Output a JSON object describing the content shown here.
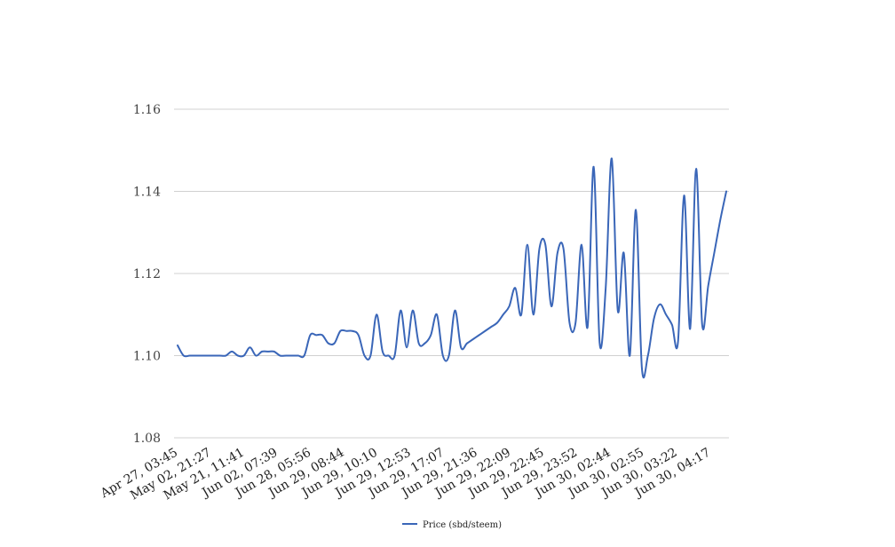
{
  "chart_data": {
    "type": "line",
    "title": "",
    "xlabel": "",
    "ylabel": "",
    "ylim": [
      1.08,
      1.16
    ],
    "y_ticks": [
      1.08,
      1.1,
      1.12,
      1.14,
      1.16
    ],
    "y_tick_labels": [
      "1.08",
      "1.10",
      "1.12",
      "1.14",
      "1.16"
    ],
    "x_tick_labels": [
      "Apr 27, 03:45",
      "May 02, 21:27",
      "May 21, 11:41",
      "Jun 02, 07:39",
      "Jun 28, 05:56",
      "Jun 29, 08:44",
      "Jun 29, 10:10",
      "Jun 29, 12:53",
      "Jun 29, 17:07",
      "Jun 29, 21:36",
      "Jun 29, 22:09",
      "Jun 29, 22:45",
      "Jun 29, 23:52",
      "Jun 30, 02:44",
      "Jun 30, 02:55",
      "Jun 30, 03:22",
      "Jun 30, 04:17"
    ],
    "grid": true,
    "legend_position": "bottom",
    "series": [
      {
        "name": "Price (sbd/steem)",
        "color": "#3a66b8",
        "values": [
          1.1025,
          1.1,
          1.1,
          1.1,
          1.1,
          1.1,
          1.1,
          1.1,
          1.1,
          1.101,
          1.1,
          1.1,
          1.102,
          1.1,
          1.101,
          1.101,
          1.101,
          1.1,
          1.1,
          1.1,
          1.1,
          1.1,
          1.105,
          1.105,
          1.105,
          1.103,
          1.103,
          1.106,
          1.106,
          1.106,
          1.105,
          1.1,
          1.1,
          1.11,
          1.101,
          1.1,
          1.1,
          1.111,
          1.102,
          1.111,
          1.103,
          1.103,
          1.105,
          1.11,
          1.1,
          1.1,
          1.111,
          1.102,
          1.103,
          1.104,
          1.105,
          1.106,
          1.107,
          1.108,
          1.11,
          1.112,
          1.1165,
          1.11,
          1.127,
          1.11,
          1.126,
          1.127,
          1.112,
          1.125,
          1.126,
          1.108,
          1.108,
          1.127,
          1.107,
          1.146,
          1.103,
          1.1165,
          1.148,
          1.111,
          1.125,
          1.1,
          1.1355,
          1.097,
          1.1,
          1.109,
          1.1125,
          1.11,
          1.1075,
          1.1035,
          1.139,
          1.1065,
          1.1455,
          1.1075,
          1.117,
          1.125,
          1.133,
          1.14
        ]
      }
    ]
  }
}
